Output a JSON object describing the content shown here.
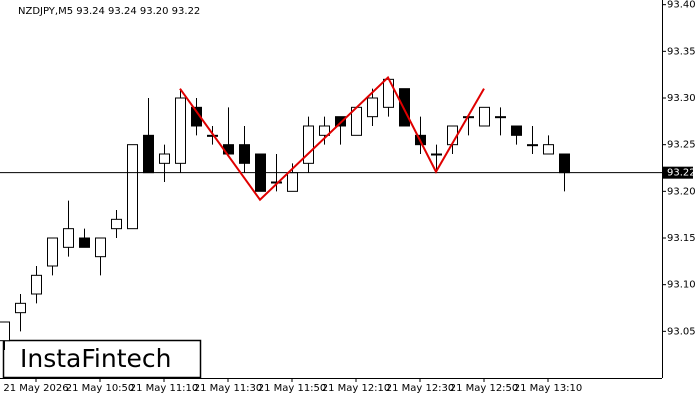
{
  "chart_data": {
    "type": "candlestick",
    "title": "NZDJPY,M5  93.24 93.24 93.20 93.22",
    "categories": [
      null,
      null,
      "21 May 2026",
      null,
      null,
      null,
      "21 May 10:50",
      null,
      null,
      null,
      "21 May 11:10",
      null,
      null,
      null,
      "21 May 11:30",
      null,
      null,
      null,
      "21 May 11:50",
      null,
      null,
      null,
      "21 May 12:10",
      null,
      null,
      null,
      "21 May 12:30",
      null,
      null,
      null,
      "21 May 12:50",
      null,
      null,
      null,
      "21 May 13:10",
      null
    ],
    "open": [
      93.04,
      93.07,
      93.09,
      93.12,
      93.14,
      93.15,
      93.13,
      93.16,
      93.16,
      93.26,
      93.23,
      93.23,
      93.29,
      93.26,
      93.25,
      93.25,
      93.24,
      93.21,
      93.2,
      93.23,
      93.26,
      93.28,
      93.26,
      93.28,
      93.29,
      93.31,
      93.26,
      93.24,
      93.25,
      93.28,
      93.27,
      93.28,
      93.27,
      93.25,
      93.24,
      93.24
    ],
    "high": [
      93.06,
      93.09,
      93.12,
      93.15,
      93.19,
      93.16,
      93.15,
      93.18,
      93.25,
      93.3,
      93.25,
      93.31,
      93.3,
      93.27,
      93.29,
      93.27,
      93.24,
      93.24,
      93.23,
      93.28,
      93.28,
      93.28,
      93.29,
      93.31,
      93.32,
      93.31,
      93.28,
      93.25,
      93.27,
      93.28,
      93.29,
      93.29,
      93.27,
      93.27,
      93.26,
      93.24
    ],
    "low": [
      93.03,
      93.05,
      93.08,
      93.11,
      93.13,
      93.14,
      93.11,
      93.15,
      93.16,
      93.22,
      93.21,
      93.22,
      93.26,
      93.25,
      93.24,
      93.22,
      93.2,
      93.2,
      93.2,
      93.22,
      93.25,
      93.25,
      93.26,
      93.27,
      93.28,
      93.27,
      93.24,
      93.22,
      93.24,
      93.26,
      93.27,
      93.26,
      93.25,
      93.24,
      93.24,
      93.2
    ],
    "close": [
      93.06,
      93.08,
      93.11,
      93.15,
      93.16,
      93.14,
      93.15,
      93.17,
      93.25,
      93.22,
      93.24,
      93.3,
      93.27,
      93.26,
      93.24,
      93.23,
      93.2,
      93.21,
      93.22,
      93.27,
      93.27,
      93.27,
      93.29,
      93.3,
      93.32,
      93.27,
      93.25,
      93.24,
      93.27,
      93.28,
      93.29,
      93.28,
      93.26,
      93.25,
      93.25,
      93.22
    ],
    "up_color": "#ffffff",
    "down_color": "#000000",
    "ylim": [
      93.0,
      93.405
    ],
    "yticks": [
      {
        "value": 93.4,
        "label": "93.40"
      },
      93.35,
      {
        "value": 93.3,
        "label": "93.30"
      },
      93.25,
      {
        "value": 93.2,
        "label": "93.20"
      },
      93.15,
      {
        "value": 93.1,
        "label": "93.10"
      },
      93.05
    ],
    "current_price": {
      "value": 93.22,
      "label": "93.22"
    },
    "pattern": {
      "color": "#e00000",
      "x": [
        11,
        16,
        24,
        27,
        30
      ],
      "y": [
        93.31,
        93.191,
        93.322,
        93.221,
        93.31
      ]
    },
    "watermark": "InstaFintech"
  }
}
